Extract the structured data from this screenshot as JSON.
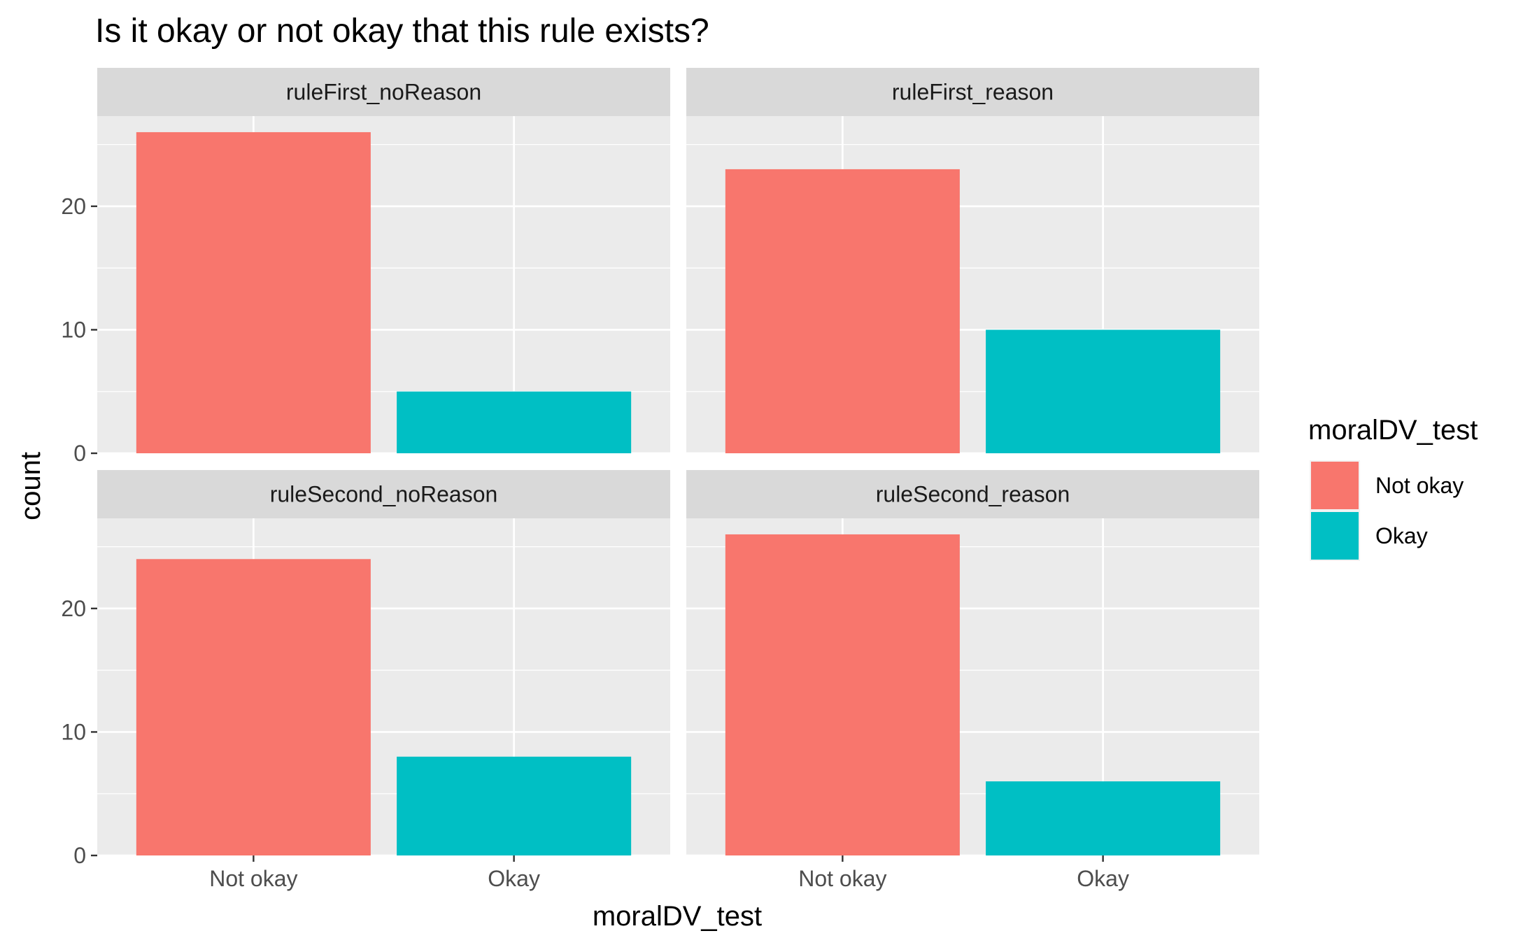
{
  "chart_data": {
    "type": "bar",
    "title": "Is it okay or not okay that this rule exists?",
    "xlabel": "moralDV_test",
    "ylabel": "count",
    "categories": [
      "Not okay",
      "Okay"
    ],
    "ylim": [
      0,
      27.3
    ],
    "y_ticks": [
      0,
      10,
      20
    ],
    "grid": true,
    "legend": {
      "title": "moralDV_test",
      "position": "right",
      "entries": [
        {
          "label": "Not okay",
          "color": "#F8766D"
        },
        {
          "label": "Okay",
          "color": "#00BFC4"
        }
      ]
    },
    "colors": {
      "Not okay": "#F8766D",
      "Okay": "#00BFC4"
    },
    "facets": [
      {
        "label": "ruleFirst_noReason",
        "values": [
          26,
          5
        ]
      },
      {
        "label": "ruleFirst_reason",
        "values": [
          23,
          10
        ]
      },
      {
        "label": "ruleSecond_noReason",
        "values": [
          24,
          8
        ]
      },
      {
        "label": "ruleSecond_reason",
        "values": [
          26,
          6
        ]
      }
    ]
  }
}
